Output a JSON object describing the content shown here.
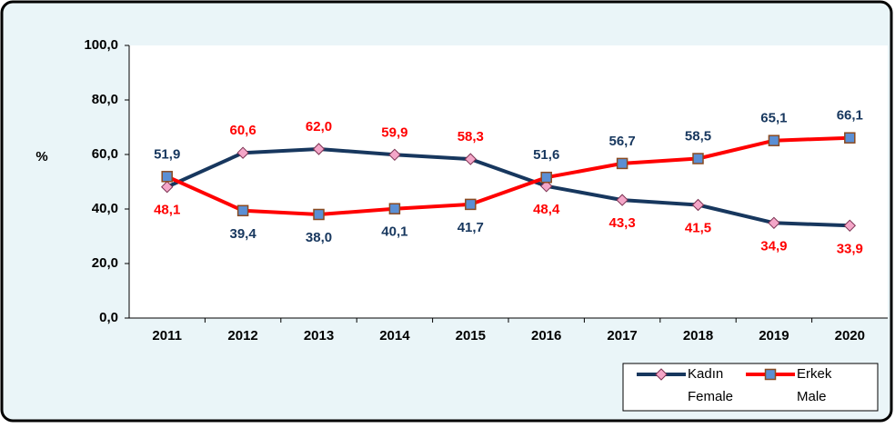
{
  "chart_data": {
    "type": "line",
    "ylabel": "%",
    "categories": [
      "2011",
      "2012",
      "2013",
      "2014",
      "2015",
      "2016",
      "2017",
      "2018",
      "2019",
      "2020"
    ],
    "series": [
      {
        "name": "Kadın",
        "name_en": "Female",
        "color": "#17375e",
        "marker_color": "#f4a6c8",
        "label_color": "#ff0000",
        "values": [
          48.1,
          60.6,
          62.0,
          59.9,
          58.3,
          48.4,
          43.3,
          41.5,
          34.9,
          33.9
        ],
        "value_labels": [
          "48,1",
          "60,6",
          "62,0",
          "59,9",
          "58,3",
          "48,4",
          "43,3",
          "41,5",
          "34,9",
          "33,9"
        ]
      },
      {
        "name": "Erkek",
        "name_en": "Male",
        "color": "#ff0000",
        "marker_color": "#5b8fd4",
        "label_color": "#17375e",
        "values": [
          51.9,
          39.4,
          38.0,
          40.1,
          41.7,
          51.6,
          56.7,
          58.5,
          65.1,
          66.1
        ],
        "value_labels": [
          "51,9",
          "39,4",
          "38,0",
          "40,1",
          "41,7",
          "51,6",
          "56,7",
          "58,5",
          "65,1",
          "66,1"
        ]
      }
    ],
    "ylim": [
      0,
      100
    ],
    "yticks": [
      {
        "value": 0,
        "label": "0,0"
      },
      {
        "value": 20,
        "label": "20,0"
      },
      {
        "value": 40,
        "label": "40,0"
      },
      {
        "value": 60,
        "label": "60,0"
      },
      {
        "value": 80,
        "label": "80,0"
      },
      {
        "value": 100,
        "label": "100,0"
      }
    ],
    "grid": false,
    "legend": "bottom-right"
  }
}
